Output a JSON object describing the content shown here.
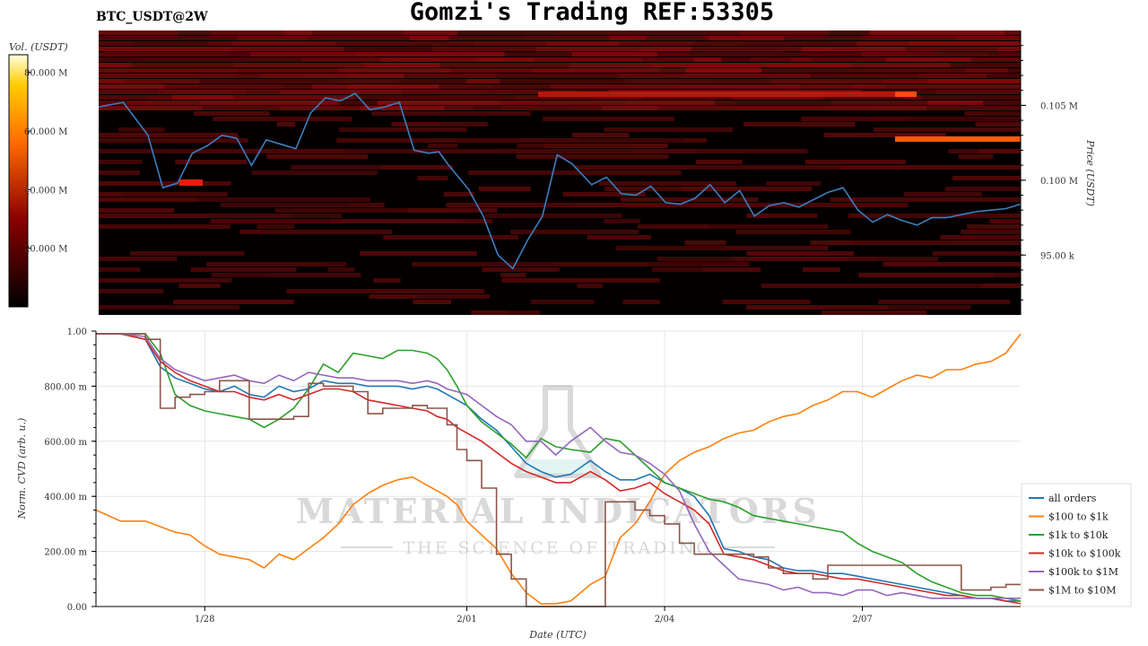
{
  "header": {
    "title": "Gomzi's Trading REF:53305",
    "symbol": "BTC_USDT@2W"
  },
  "watermark": {
    "brand": "MATERIAL INDICATORS",
    "tagline": "THE SCIENCE OF TRADING"
  },
  "colors": {
    "price_line": "#3a7fc0",
    "all_orders": "#1f77b4",
    "100_to_1k": "#ff7f0e",
    "1k_to_10k": "#2ca02c",
    "10k_to_100k": "#d62728",
    "100k_to_1M": "#9467bd",
    "1M_to_10M": "#8c564b"
  },
  "chart_data": [
    {
      "type": "heatmap",
      "colorbar_label": "Vol. (USDT)",
      "colorbar_ticks": [
        "20.000 M",
        "40.000 M",
        "60.000 M",
        "80.000 M"
      ],
      "colorbar_range": [
        0,
        86000000
      ],
      "ylabel": "Price (USDT)",
      "y_tick_labels": [
        "95.00 k",
        "0.100 M",
        "0.105 M"
      ],
      "y_ticks": [
        95000,
        100000,
        105000
      ],
      "ylim": [
        91000,
        110000
      ],
      "price_series": {
        "name": "",
        "x": [
          0,
          0.5,
          1,
          1.3,
          1.6,
          1.9,
          2.2,
          2.5,
          2.8,
          3.1,
          3.4,
          3.7,
          4.0,
          4.3,
          4.6,
          4.9,
          5.2,
          5.5,
          5.8,
          6.1,
          6.4,
          6.7,
          6.9,
          7.1,
          7.3,
          7.5,
          7.8,
          8.1,
          8.4,
          8.7,
          9.0,
          9.3,
          9.6,
          10.0,
          10.3,
          10.6,
          10.9,
          11.2,
          11.5,
          11.8,
          12.1,
          12.4,
          12.7,
          13.0,
          13.3,
          13.6,
          13.9,
          14.2,
          14.5,
          14.8,
          15.1,
          15.4,
          15.7,
          16.0,
          16.3,
          16.6,
          16.9,
          17.2,
          17.5,
          17.8,
          18.1,
          18.4,
          18.7
        ],
        "y": [
          104900,
          105200,
          103000,
          99500,
          99800,
          101800,
          102300,
          103000,
          102800,
          101000,
          102700,
          102400,
          102100,
          104500,
          105500,
          105300,
          105800,
          104700,
          104900,
          105200,
          102000,
          101800,
          101900,
          101000,
          100200,
          99400,
          97600,
          95000,
          94100,
          96000,
          97600,
          101700,
          101100,
          99700,
          100200,
          99100,
          99000,
          99600,
          98500,
          98400,
          98800,
          99700,
          98500,
          99300,
          97600,
          98300,
          98500,
          98200,
          98700,
          99200,
          99500,
          98000,
          97200,
          97700,
          97300,
          97000,
          97500,
          97500,
          97700,
          97900,
          98000,
          98100,
          98400
        ]
      }
    },
    {
      "type": "line",
      "title": "",
      "xlabel": "Date (UTC)",
      "ylabel": "Norm. CVD (arb. u.)",
      "x_tick_labels": [
        "1/28",
        "2/01",
        "2/04",
        "2/07"
      ],
      "x_ticks": [
        2.2,
        7.5,
        11.5,
        15.5
      ],
      "xlim": [
        0,
        18.7
      ],
      "y_tick_labels": [
        "0.00",
        "200.00 m",
        "400.00 m",
        "600.00 m",
        "800.00 m",
        "1.00"
      ],
      "y_ticks": [
        0,
        0.2,
        0.4,
        0.6,
        0.8,
        1.0
      ],
      "ylim": [
        0,
        1
      ],
      "grid": true,
      "legend_position": "right",
      "x": [
        0,
        0.5,
        1,
        1.3,
        1.6,
        1.9,
        2.2,
        2.5,
        2.8,
        3.1,
        3.4,
        3.7,
        4.0,
        4.3,
        4.6,
        4.9,
        5.2,
        5.5,
        5.8,
        6.1,
        6.4,
        6.7,
        6.9,
        7.1,
        7.3,
        7.5,
        7.8,
        8.1,
        8.4,
        8.7,
        9.0,
        9.3,
        9.6,
        10.0,
        10.3,
        10.6,
        10.9,
        11.2,
        11.5,
        11.8,
        12.1,
        12.4,
        12.7,
        13.0,
        13.3,
        13.6,
        13.9,
        14.2,
        14.5,
        14.8,
        15.1,
        15.4,
        15.7,
        16.0,
        16.3,
        16.6,
        16.9,
        17.2,
        17.5,
        17.8,
        18.1,
        18.4,
        18.7
      ],
      "series": [
        {
          "name": "all orders",
          "values": [
            0.99,
            0.99,
            0.97,
            0.87,
            0.83,
            0.81,
            0.79,
            0.78,
            0.8,
            0.77,
            0.76,
            0.8,
            0.78,
            0.79,
            0.82,
            0.81,
            0.81,
            0.8,
            0.8,
            0.8,
            0.79,
            0.8,
            0.79,
            0.77,
            0.75,
            0.73,
            0.68,
            0.64,
            0.58,
            0.52,
            0.49,
            0.47,
            0.48,
            0.53,
            0.49,
            0.46,
            0.46,
            0.48,
            0.45,
            0.43,
            0.4,
            0.33,
            0.21,
            0.2,
            0.18,
            0.17,
            0.14,
            0.13,
            0.13,
            0.12,
            0.12,
            0.11,
            0.1,
            0.09,
            0.08,
            0.07,
            0.06,
            0.05,
            0.04,
            0.03,
            0.03,
            0.02,
            0.02
          ]
        },
        {
          "name": "$100 to $1k",
          "values": [
            0.35,
            0.31,
            0.31,
            0.29,
            0.27,
            0.26,
            0.22,
            0.19,
            0.18,
            0.17,
            0.14,
            0.19,
            0.17,
            0.21,
            0.25,
            0.3,
            0.37,
            0.41,
            0.44,
            0.46,
            0.47,
            0.44,
            0.42,
            0.4,
            0.37,
            0.31,
            0.26,
            0.21,
            0.12,
            0.05,
            0.01,
            0.01,
            0.02,
            0.08,
            0.11,
            0.25,
            0.3,
            0.38,
            0.48,
            0.53,
            0.56,
            0.58,
            0.61,
            0.63,
            0.64,
            0.67,
            0.69,
            0.7,
            0.73,
            0.75,
            0.78,
            0.78,
            0.76,
            0.79,
            0.82,
            0.84,
            0.83,
            0.86,
            0.86,
            0.88,
            0.89,
            0.92,
            0.99
          ]
        },
        {
          "name": "$1k to $10k",
          "values": [
            0.99,
            0.99,
            0.99,
            0.92,
            0.77,
            0.73,
            0.71,
            0.7,
            0.69,
            0.68,
            0.65,
            0.68,
            0.72,
            0.79,
            0.88,
            0.85,
            0.92,
            0.91,
            0.9,
            0.93,
            0.93,
            0.92,
            0.9,
            0.86,
            0.8,
            0.73,
            0.67,
            0.63,
            0.59,
            0.54,
            0.61,
            0.58,
            0.57,
            0.56,
            0.61,
            0.6,
            0.55,
            0.5,
            0.45,
            0.43,
            0.41,
            0.39,
            0.38,
            0.36,
            0.33,
            0.32,
            0.31,
            0.3,
            0.29,
            0.28,
            0.27,
            0.23,
            0.2,
            0.18,
            0.16,
            0.12,
            0.09,
            0.07,
            0.05,
            0.04,
            0.04,
            0.03,
            0.02
          ]
        },
        {
          "name": "$10k to $100k",
          "values": [
            0.99,
            0.99,
            0.97,
            0.89,
            0.85,
            0.82,
            0.8,
            0.78,
            0.78,
            0.76,
            0.75,
            0.77,
            0.75,
            0.77,
            0.79,
            0.79,
            0.78,
            0.75,
            0.74,
            0.73,
            0.72,
            0.71,
            0.69,
            0.68,
            0.65,
            0.63,
            0.6,
            0.56,
            0.52,
            0.49,
            0.47,
            0.45,
            0.45,
            0.49,
            0.46,
            0.42,
            0.43,
            0.45,
            0.41,
            0.38,
            0.35,
            0.3,
            0.19,
            0.18,
            0.17,
            0.15,
            0.13,
            0.12,
            0.12,
            0.11,
            0.1,
            0.1,
            0.09,
            0.08,
            0.07,
            0.06,
            0.05,
            0.04,
            0.04,
            0.03,
            0.03,
            0.02,
            0.01
          ]
        },
        {
          "name": "$100k to $1M",
          "values": [
            0.99,
            0.99,
            0.98,
            0.9,
            0.86,
            0.84,
            0.82,
            0.83,
            0.84,
            0.82,
            0.81,
            0.84,
            0.82,
            0.85,
            0.84,
            0.83,
            0.83,
            0.82,
            0.82,
            0.82,
            0.81,
            0.82,
            0.81,
            0.79,
            0.78,
            0.77,
            0.73,
            0.69,
            0.66,
            0.6,
            0.6,
            0.55,
            0.6,
            0.65,
            0.6,
            0.56,
            0.55,
            0.52,
            0.48,
            0.42,
            0.3,
            0.2,
            0.15,
            0.1,
            0.09,
            0.08,
            0.06,
            0.07,
            0.05,
            0.05,
            0.04,
            0.06,
            0.06,
            0.04,
            0.05,
            0.04,
            0.03,
            0.03,
            0.03,
            0.03,
            0.03,
            0.03,
            0.03
          ]
        },
        {
          "name": "$1M to $10M",
          "values": [
            0.99,
            0.99,
            0.97,
            0.72,
            0.76,
            0.77,
            0.78,
            0.82,
            0.82,
            0.68,
            0.68,
            0.68,
            0.69,
            0.81,
            0.8,
            0.8,
            0.78,
            0.7,
            0.72,
            0.72,
            0.73,
            0.72,
            0.72,
            0.66,
            0.57,
            0.53,
            0.43,
            0.19,
            0.1,
            0.0,
            0.0,
            0.0,
            0.0,
            0.0,
            0.38,
            0.38,
            0.35,
            0.33,
            0.3,
            0.23,
            0.19,
            0.19,
            0.19,
            0.19,
            0.18,
            0.14,
            0.12,
            0.12,
            0.1,
            0.15,
            0.15,
            0.15,
            0.15,
            0.15,
            0.15,
            0.15,
            0.15,
            0.15,
            0.06,
            0.06,
            0.07,
            0.08,
            0.08
          ]
        }
      ]
    }
  ]
}
